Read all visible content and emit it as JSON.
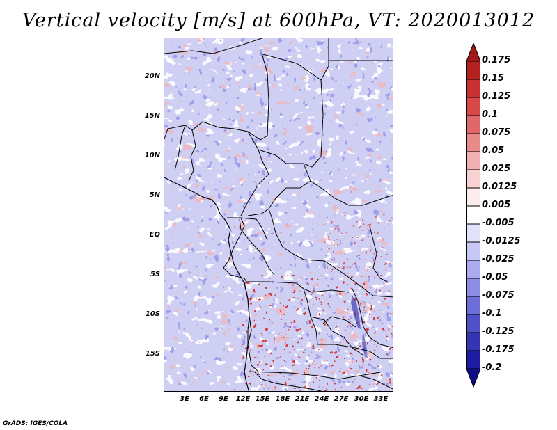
{
  "title": "Vertical velocity [m/s] at 600hPa, VT: 2020013012",
  "credit": "GrADS: IGES/COLA",
  "map": {
    "lat_range": [
      -19.5,
      24.5
    ],
    "lon_range": [
      0,
      34
    ],
    "lat_ticks": [
      {
        "value": 20,
        "label": "20N"
      },
      {
        "value": 15,
        "label": "15N"
      },
      {
        "value": 10,
        "label": "10N"
      },
      {
        "value": 5,
        "label": "5N"
      },
      {
        "value": 0,
        "label": "EQ"
      },
      {
        "value": -5,
        "label": "5S"
      },
      {
        "value": -10,
        "label": "10S"
      },
      {
        "value": -15,
        "label": "15S"
      }
    ],
    "lon_ticks": [
      {
        "value": 3,
        "label": "3E"
      },
      {
        "value": 6,
        "label": "6E"
      },
      {
        "value": 9,
        "label": "9E"
      },
      {
        "value": 12,
        "label": "12E"
      },
      {
        "value": 15,
        "label": "15E"
      },
      {
        "value": 18,
        "label": "18E"
      },
      {
        "value": 21,
        "label": "21E"
      },
      {
        "value": 24,
        "label": "24E"
      },
      {
        "value": 27,
        "label": "27E"
      },
      {
        "value": 30,
        "label": "30E"
      },
      {
        "value": 33,
        "label": "33E"
      }
    ]
  },
  "colorbar": {
    "labels": [
      "0.175",
      "0.15",
      "0.125",
      "0.1",
      "0.075",
      "0.05",
      "0.025",
      "0.0125",
      "0.005",
      "-0.005",
      "-0.0125",
      "-0.025",
      "-0.05",
      "-0.075",
      "-0.1",
      "-0.125",
      "-0.175",
      "-0.2"
    ],
    "colors": [
      "#a01a1a",
      "#b52020",
      "#c83232",
      "#d94848",
      "#e06868",
      "#e88a8a",
      "#f2b0b0",
      "#f8d2d2",
      "#fcecec",
      "#ffffff",
      "#e2e2fb",
      "#c8c8f4",
      "#aaaaee",
      "#8c8ce4",
      "#6e6ed8",
      "#5050c8",
      "#3434b4",
      "#1c1ca0",
      "#0c0c88"
    ]
  }
}
